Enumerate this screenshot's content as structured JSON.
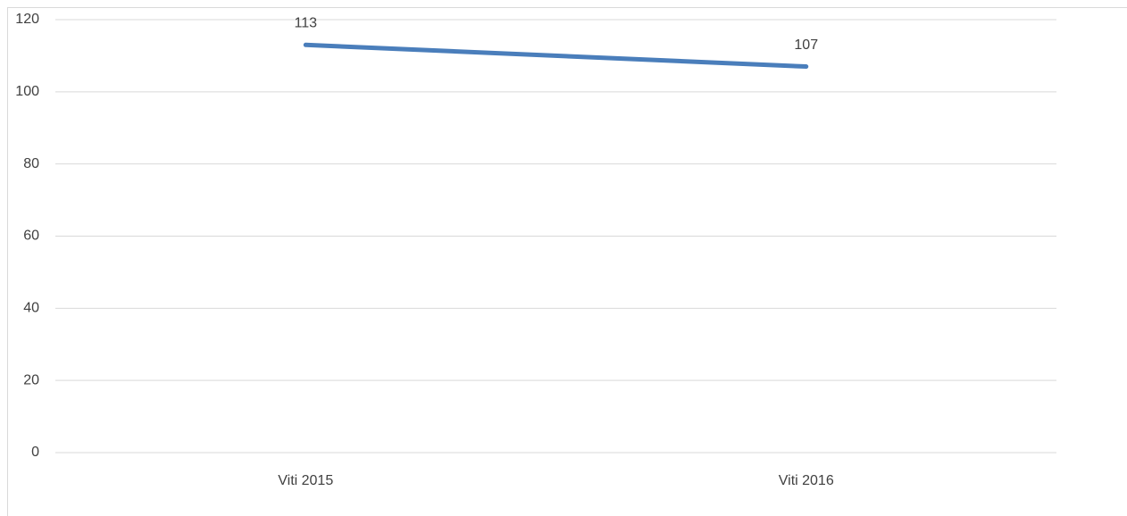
{
  "chart_data": {
    "type": "line",
    "categories": [
      "Viti 2015",
      "Viti 2016"
    ],
    "series": [
      {
        "color": "#4a7ebb",
        "values": [
          113,
          107
        ]
      }
    ],
    "ylim": [
      0,
      120
    ],
    "yticks": [
      0,
      20,
      40,
      60,
      80,
      100,
      120
    ],
    "grid": true,
    "data_labels": true
  }
}
